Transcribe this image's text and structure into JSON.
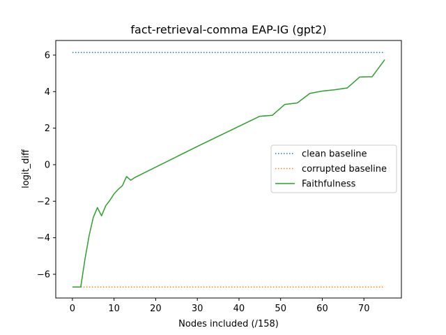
{
  "chart_data": {
    "type": "line",
    "title": "fact-retrieval-comma EAP-IG (gpt2)",
    "xlabel": "Nodes included (/158)",
    "ylabel": "logit_diff",
    "xlim": [
      -4,
      79
    ],
    "ylim": [
      -7.3,
      6.8
    ],
    "xticks": [
      0,
      10,
      20,
      30,
      40,
      50,
      60,
      70
    ],
    "yticks": [
      -6,
      -4,
      -2,
      0,
      2,
      4,
      6
    ],
    "legend_position": "center-right",
    "grid": false,
    "series": [
      {
        "name": "clean baseline",
        "style": "dotted",
        "color": "#1f77b4",
        "x": [
          0,
          75
        ],
        "y": [
          6.14,
          6.14
        ]
      },
      {
        "name": "corrupted baseline",
        "style": "dotted",
        "color": "#ff7f0e",
        "x": [
          0,
          75
        ],
        "y": [
          -6.7,
          -6.7
        ]
      },
      {
        "name": "Faithfulness",
        "style": "solid",
        "color": "#2ca02c",
        "x": [
          0,
          1,
          2,
          3,
          4,
          5,
          6,
          7,
          8,
          9,
          10,
          11,
          12,
          13,
          14,
          15,
          30,
          45,
          48,
          51,
          54,
          57,
          60,
          63,
          66,
          69,
          72,
          75
        ],
        "y": [
          -6.7,
          -6.7,
          -6.7,
          -5.2,
          -3.9,
          -2.9,
          -2.35,
          -2.8,
          -2.25,
          -1.95,
          -1.6,
          -1.35,
          -1.15,
          -0.65,
          -0.85,
          -0.7,
          1.0,
          2.65,
          2.7,
          3.3,
          3.38,
          3.9,
          4.03,
          4.1,
          4.2,
          4.8,
          4.82,
          5.75
        ]
      }
    ]
  }
}
